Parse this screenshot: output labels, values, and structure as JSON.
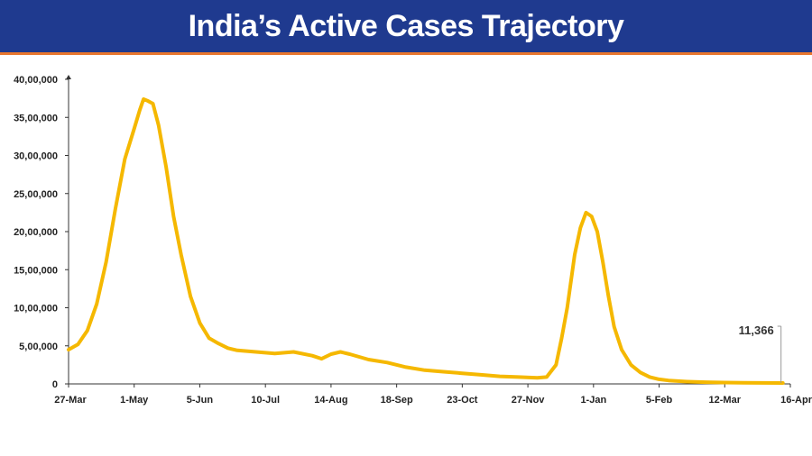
{
  "banner": {
    "title": "India’s Active Cases Trajectory"
  },
  "colors": {
    "banner": "#1f3a8f",
    "accent_rule": "#e8772e",
    "line": "#f5b800",
    "axis": "#333333"
  },
  "chart_data": {
    "type": "line",
    "title": "India’s Active Cases Trajectory",
    "xlabel": "",
    "ylabel": "",
    "grid": false,
    "legend": "none",
    "x_tick_labels": [
      "27-Mar",
      "1-May",
      "5-Jun",
      "10-Jul",
      "14-Aug",
      "18-Sep",
      "23-Oct",
      "27-Nov",
      "1-Jan",
      "5-Feb",
      "12-Mar",
      "16-Apr"
    ],
    "y_tick_labels": [
      "0",
      "5,00,000",
      "10,00,000",
      "15,00,000",
      "20,00,000",
      "25,00,000",
      "30,00,000",
      "35,00,000",
      "40,00,000"
    ],
    "ylim": [
      0,
      4000000
    ],
    "x_days_range": [
      0,
      385
    ],
    "series": [
      {
        "values": [
          [
            0,
            450000
          ],
          [
            5,
            520000
          ],
          [
            10,
            700000
          ],
          [
            15,
            1050000
          ],
          [
            20,
            1600000
          ],
          [
            25,
            2300000
          ],
          [
            30,
            2950000
          ],
          [
            35,
            3350000
          ],
          [
            38,
            3600000
          ],
          [
            40,
            3740000
          ],
          [
            42,
            3720000
          ],
          [
            45,
            3680000
          ],
          [
            48,
            3400000
          ],
          [
            52,
            2850000
          ],
          [
            56,
            2200000
          ],
          [
            60,
            1700000
          ],
          [
            65,
            1150000
          ],
          [
            70,
            800000
          ],
          [
            75,
            600000
          ],
          [
            80,
            530000
          ],
          [
            85,
            470000
          ],
          [
            90,
            440000
          ],
          [
            100,
            420000
          ],
          [
            110,
            400000
          ],
          [
            120,
            420000
          ],
          [
            130,
            370000
          ],
          [
            135,
            330000
          ],
          [
            140,
            390000
          ],
          [
            145,
            420000
          ],
          [
            150,
            390000
          ],
          [
            160,
            320000
          ],
          [
            170,
            280000
          ],
          [
            180,
            220000
          ],
          [
            190,
            180000
          ],
          [
            200,
            160000
          ],
          [
            210,
            140000
          ],
          [
            220,
            120000
          ],
          [
            230,
            100000
          ],
          [
            240,
            90000
          ],
          [
            250,
            80000
          ],
          [
            255,
            90000
          ],
          [
            260,
            250000
          ],
          [
            263,
            600000
          ],
          [
            266,
            1000000
          ],
          [
            270,
            1700000
          ],
          [
            273,
            2050000
          ],
          [
            276,
            2250000
          ],
          [
            279,
            2200000
          ],
          [
            282,
            2000000
          ],
          [
            285,
            1600000
          ],
          [
            288,
            1150000
          ],
          [
            291,
            750000
          ],
          [
            295,
            450000
          ],
          [
            300,
            250000
          ],
          [
            305,
            150000
          ],
          [
            310,
            90000
          ],
          [
            315,
            60000
          ],
          [
            320,
            45000
          ],
          [
            330,
            30000
          ],
          [
            340,
            22000
          ],
          [
            350,
            18000
          ],
          [
            360,
            15000
          ],
          [
            370,
            13000
          ],
          [
            381,
            11366
          ]
        ]
      }
    ],
    "annotation": {
      "label": "11,366",
      "value": 11366,
      "x_day": 381
    }
  }
}
